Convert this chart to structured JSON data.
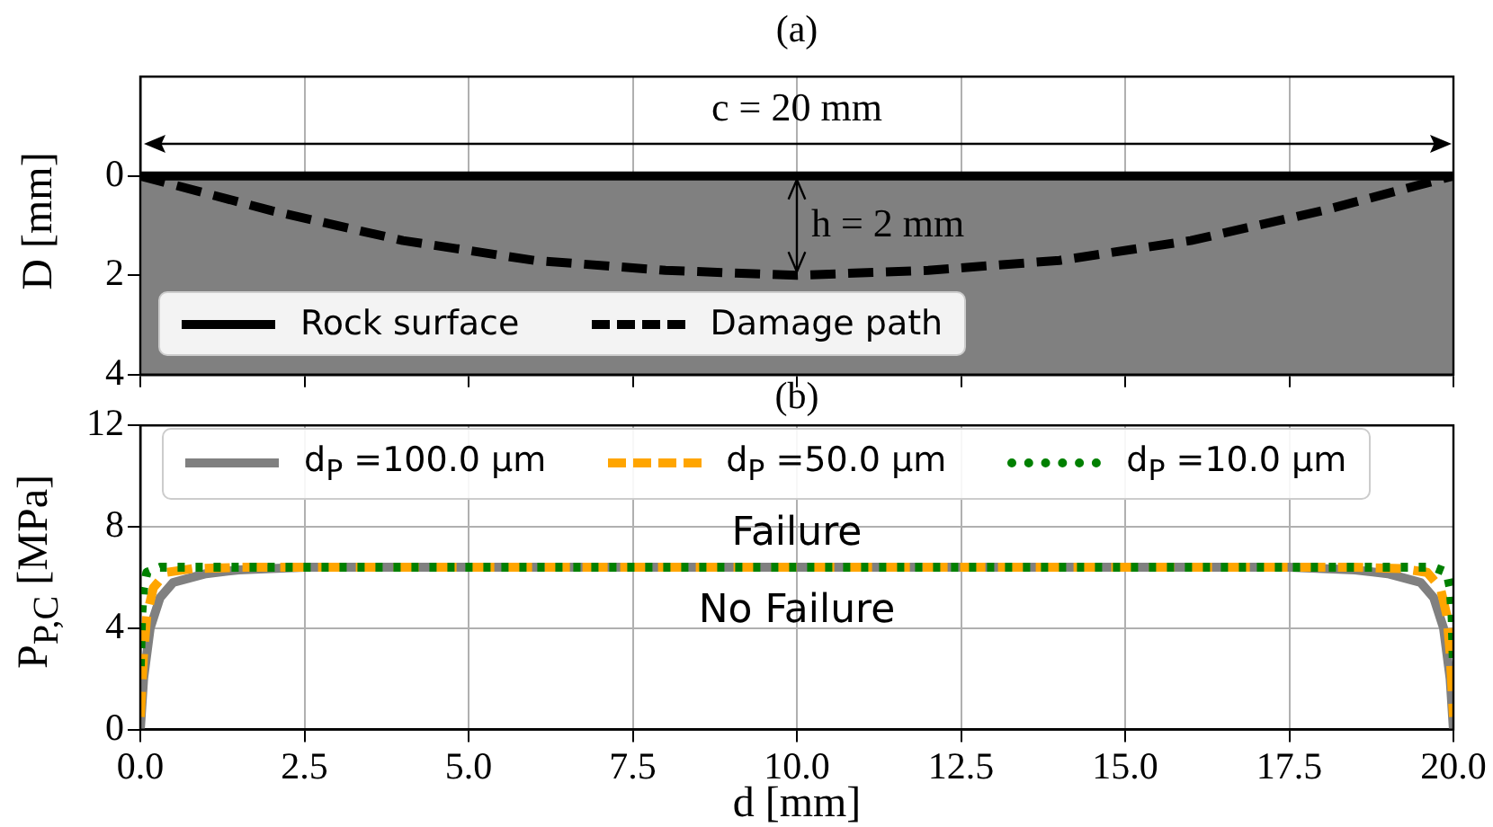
{
  "chart_data": [
    {
      "type": "line",
      "title": "(a)",
      "ylabel": "D [mm]",
      "xlim": [
        0,
        20
      ],
      "xticks": [
        0,
        2.5,
        5,
        7.5,
        10,
        12.5,
        15,
        17.5,
        20
      ],
      "ylim": [
        4,
        -2
      ],
      "yticks": [
        0,
        2,
        4
      ],
      "grid": "x",
      "tick_labels": "y",
      "legend": "bottom left",
      "bands": [
        {
          "axis": "y",
          "from": 0,
          "to": 4,
          "color": "#808080"
        }
      ],
      "annotations": [
        "c = 20 mm",
        {
          "text": "h = 2 mm",
          "x": 10,
          "y": 2
        }
      ],
      "series": [
        {
          "name": "Rock surface",
          "color": "#000000",
          "line_style": "solid",
          "x": [
            0,
            20
          ],
          "values": [
            0,
            0
          ]
        },
        {
          "name": "Damage path",
          "color": "#000000",
          "line_style": "dashed",
          "x": [
            0,
            2,
            4,
            6,
            8,
            10,
            12,
            14,
            16,
            18,
            20
          ],
          "values": [
            0,
            0.7,
            1.3,
            1.7,
            1.9,
            2,
            1.9,
            1.7,
            1.3,
            0.7,
            0
          ]
        }
      ]
    },
    {
      "type": "line",
      "title": "(b)",
      "xlabel": "d [mm]",
      "ylabel": "P$_{P,C}$ [MPa]",
      "xlim": [
        0,
        20
      ],
      "xticks": [
        {
          "value": 0,
          "label": "0.0"
        },
        {
          "value": 2.5,
          "label": "2.5"
        },
        {
          "value": 5,
          "label": "5.0"
        },
        {
          "value": 7.5,
          "label": "7.5"
        },
        {
          "value": 10,
          "label": "10.0"
        },
        {
          "value": 12.5,
          "label": "12.5"
        },
        {
          "value": 15,
          "label": "15.0"
        },
        {
          "value": 17.5,
          "label": "17.5"
        },
        {
          "value": 20,
          "label": "20.0"
        }
      ],
      "ylim": [
        0,
        12
      ],
      "yticks": [
        0,
        4,
        8,
        12
      ],
      "grid": true,
      "legend": "top",
      "annotations": [
        "Failure",
        "No Failure"
      ],
      "series": [
        {
          "name": "d$_{P}$ =100.0 μm",
          "color": "#808080",
          "line_style": "solid",
          "x": [
            0,
            0.05,
            0.15,
            0.3,
            0.5,
            1,
            1.5,
            2.5,
            5,
            10,
            15,
            17.5,
            18.5,
            19,
            19.5,
            19.7,
            19.85,
            19.95,
            20
          ],
          "values": [
            0,
            2,
            4,
            5.2,
            5.8,
            6.15,
            6.3,
            6.4,
            6.4,
            6.4,
            6.4,
            6.4,
            6.3,
            6.15,
            5.8,
            5.2,
            4,
            2,
            0
          ]
        },
        {
          "name": "d$_{P}$ =50.0 μm",
          "color": "#ffa500",
          "line_style": "dashed",
          "x": [
            0,
            0.05,
            0.1,
            0.2,
            0.4,
            0.8,
            1.5,
            5,
            10,
            15,
            18.5,
            19.2,
            19.6,
            19.8,
            19.9,
            19.95,
            20
          ],
          "values": [
            0.5,
            3,
            4.5,
            5.6,
            6.2,
            6.35,
            6.4,
            6.4,
            6.4,
            6.4,
            6.4,
            6.35,
            6.2,
            5.6,
            4.5,
            3,
            0.5
          ]
        },
        {
          "name": "d$_{P}$ =10.0 μm",
          "color": "#008000",
          "line_style": "dotted",
          "x": [
            0,
            0.02,
            0.05,
            0.1,
            0.3,
            5,
            10,
            15,
            19.7,
            19.9,
            19.95,
            19.98,
            20
          ],
          "values": [
            2.5,
            4.5,
            5.6,
            6.2,
            6.4,
            6.4,
            6.4,
            6.4,
            6.4,
            6.2,
            5.6,
            4.5,
            2.5
          ]
        }
      ]
    }
  ]
}
